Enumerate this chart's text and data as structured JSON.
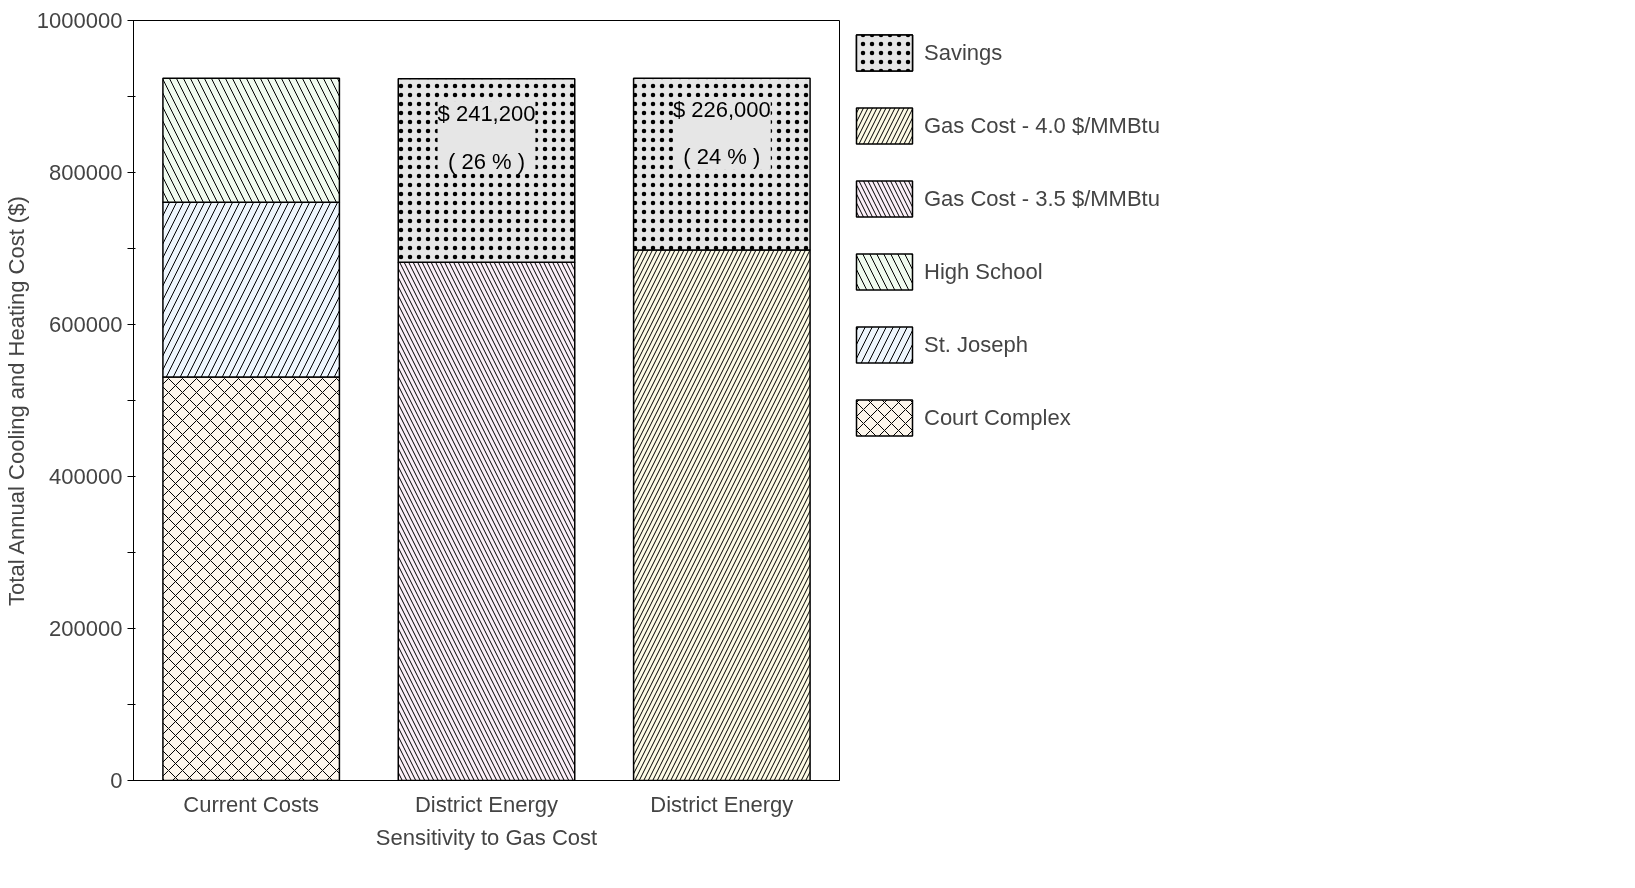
{
  "chart_data": {
    "type": "bar",
    "stacked": true,
    "xlabel": "Sensitivity to Gas Cost",
    "ylabel": "Total Annual Cooling and Heating Cost ($)",
    "categories": [
      "Current Costs",
      "District Energy",
      "District Energy"
    ],
    "series": [
      {
        "name": "Court Complex",
        "color": "#fdf6ec",
        "values": [
          531000,
          null,
          null
        ]
      },
      {
        "name": "St. Joseph",
        "color": "#eef6fd",
        "values": [
          230000,
          null,
          null
        ]
      },
      {
        "name": "High School",
        "color": "#f0fbef",
        "values": [
          163000,
          null,
          null
        ]
      },
      {
        "name": "Gas Cost - 3.5 $/MMBtu",
        "color": "#fbeff8",
        "values": [
          null,
          682000,
          null
        ]
      },
      {
        "name": "Gas Cost - 4.0 $/MMBtu",
        "color": "#fdfbe6",
        "values": [
          null,
          null,
          698000
        ]
      },
      {
        "name": "Savings",
        "color": "#e6e6e6",
        "values": [
          null,
          241200,
          226000
        ],
        "value_labels": [
          null,
          "$ 241,200\n( 26 % )",
          "$ 226,000\n( 24 % )"
        ]
      }
    ],
    "ylim": [
      0,
      1000000
    ],
    "yticks": [
      0,
      {
        "value": 100000,
        "label": null
      },
      200000,
      {
        "value": 300000,
        "label": null
      },
      400000,
      {
        "value": 500000,
        "label": null
      },
      600000,
      {
        "value": 700000,
        "label": null
      },
      800000,
      {
        "value": 900000,
        "label": null
      },
      1000000
    ],
    "grid": false,
    "legend": "right"
  }
}
